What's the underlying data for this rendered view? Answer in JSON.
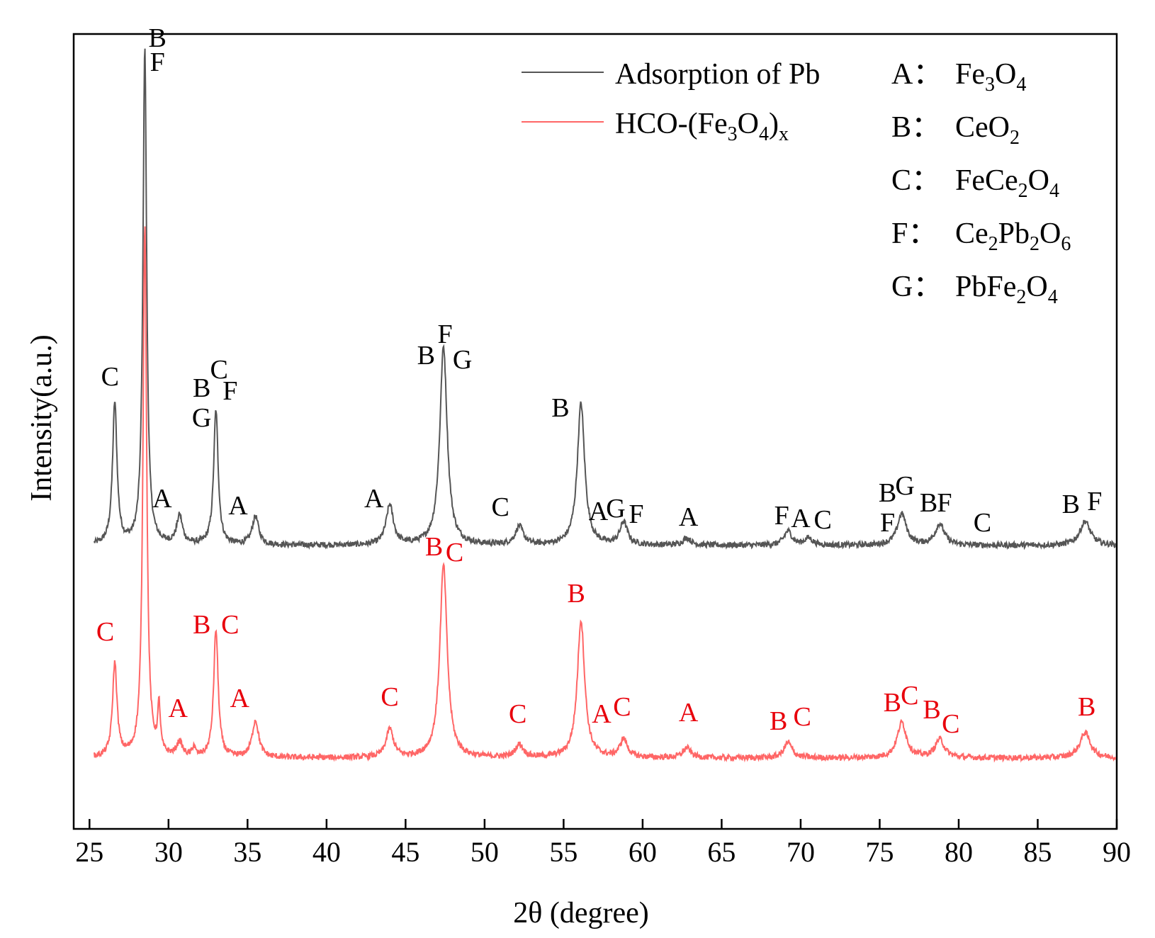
{
  "chart_data": {
    "type": "line",
    "xlabel": "2θ (degree)",
    "ylabel": "Intensity(a.u.)",
    "xlim": [
      24,
      90
    ],
    "x_ticks": [
      "25",
      "30",
      "35",
      "40",
      "45",
      "50",
      "55",
      "60",
      "65",
      "70",
      "75",
      "80",
      "85",
      "90"
    ],
    "y_ticks_visible": false,
    "grid": false,
    "legend_position": "top-right",
    "series": [
      {
        "name": "Adsorption of Pb",
        "color": "#555555",
        "baseline": 0.0,
        "noise": 0.04,
        "peaks": [
          {
            "x": 26.6,
            "h": 1.0,
            "w": 0.17
          },
          {
            "x": 28.5,
            "h": 3.5,
            "w": 0.14
          },
          {
            "x": 30.7,
            "h": 0.2,
            "w": 0.22
          },
          {
            "x": 33.0,
            "h": 0.95,
            "w": 0.17
          },
          {
            "x": 35.5,
            "h": 0.2,
            "w": 0.25
          },
          {
            "x": 44.0,
            "h": 0.28,
            "w": 0.28
          },
          {
            "x": 47.4,
            "h": 1.4,
            "w": 0.28
          },
          {
            "x": 52.2,
            "h": 0.13,
            "w": 0.3
          },
          {
            "x": 56.1,
            "h": 1.0,
            "w": 0.28
          },
          {
            "x": 58.8,
            "h": 0.16,
            "w": 0.28
          },
          {
            "x": 62.8,
            "h": 0.05,
            "w": 0.3
          },
          {
            "x": 69.2,
            "h": 0.1,
            "w": 0.3
          },
          {
            "x": 70.5,
            "h": 0.05,
            "w": 0.3
          },
          {
            "x": 76.4,
            "h": 0.22,
            "w": 0.35
          },
          {
            "x": 78.8,
            "h": 0.15,
            "w": 0.35
          },
          {
            "x": 88.0,
            "h": 0.17,
            "w": 0.4
          }
        ],
        "labels": [
          {
            "text": "C",
            "x": 26.3,
            "y": 1.13
          },
          {
            "text": "B",
            "x": 29.3,
            "y": 3.52
          },
          {
            "text": "F",
            "x": 29.3,
            "y": 3.35
          },
          {
            "text": "A",
            "x": 29.6,
            "y": 0.27
          },
          {
            "text": "C",
            "x": 33.2,
            "y": 1.18
          },
          {
            "text": "B",
            "x": 32.1,
            "y": 1.05
          },
          {
            "text": "F",
            "x": 33.9,
            "y": 1.03
          },
          {
            "text": "G",
            "x": 32.1,
            "y": 0.84
          },
          {
            "text": "A",
            "x": 34.4,
            "y": 0.22
          },
          {
            "text": "A",
            "x": 43.0,
            "y": 0.27
          },
          {
            "text": "F",
            "x": 47.5,
            "y": 1.43
          },
          {
            "text": "B",
            "x": 46.3,
            "y": 1.28
          },
          {
            "text": "G",
            "x": 48.6,
            "y": 1.25
          },
          {
            "text": "C",
            "x": 51.0,
            "y": 0.21
          },
          {
            "text": "B",
            "x": 54.8,
            "y": 0.91
          },
          {
            "text": "A",
            "x": 57.2,
            "y": 0.18
          },
          {
            "text": "G",
            "x": 58.3,
            "y": 0.2
          },
          {
            "text": "F",
            "x": 59.6,
            "y": 0.16
          },
          {
            "text": "A",
            "x": 62.9,
            "y": 0.14
          },
          {
            "text": "F",
            "x": 68.8,
            "y": 0.15
          },
          {
            "text": "A",
            "x": 70.0,
            "y": 0.13
          },
          {
            "text": "C",
            "x": 71.4,
            "y": 0.12
          },
          {
            "text": "B",
            "x": 75.5,
            "y": 0.31
          },
          {
            "text": "G",
            "x": 76.6,
            "y": 0.36
          },
          {
            "text": "F",
            "x": 75.5,
            "y": 0.1
          },
          {
            "text": "B",
            "x": 78.1,
            "y": 0.24
          },
          {
            "text": "F",
            "x": 79.1,
            "y": 0.24
          },
          {
            "text": "C",
            "x": 81.5,
            "y": 0.1
          },
          {
            "text": "B",
            "x": 87.1,
            "y": 0.23
          },
          {
            "text": "F",
            "x": 88.6,
            "y": 0.25
          }
        ]
      },
      {
        "name": "HCO-(Fe3O4)x",
        "color": "#ff6666",
        "baseline": -1.5,
        "noise": 0.04,
        "peaks": [
          {
            "x": 26.6,
            "h": 0.66,
            "w": 0.17
          },
          {
            "x": 28.5,
            "h": 3.75,
            "w": 0.14
          },
          {
            "x": 29.4,
            "h": 0.33,
            "w": 0.1
          },
          {
            "x": 30.7,
            "h": 0.1,
            "w": 0.22
          },
          {
            "x": 31.6,
            "h": 0.07,
            "w": 0.1
          },
          {
            "x": 33.0,
            "h": 0.9,
            "w": 0.17
          },
          {
            "x": 35.5,
            "h": 0.26,
            "w": 0.25
          },
          {
            "x": 44.0,
            "h": 0.2,
            "w": 0.28
          },
          {
            "x": 47.4,
            "h": 1.36,
            "w": 0.28
          },
          {
            "x": 52.2,
            "h": 0.09,
            "w": 0.3
          },
          {
            "x": 56.1,
            "h": 0.97,
            "w": 0.28
          },
          {
            "x": 58.8,
            "h": 0.13,
            "w": 0.28
          },
          {
            "x": 62.8,
            "h": 0.07,
            "w": 0.3
          },
          {
            "x": 69.2,
            "h": 0.11,
            "w": 0.3
          },
          {
            "x": 76.4,
            "h": 0.25,
            "w": 0.35
          },
          {
            "x": 78.8,
            "h": 0.13,
            "w": 0.35
          },
          {
            "x": 88.0,
            "h": 0.18,
            "w": 0.4
          }
        ],
        "labels": [
          {
            "text": "C",
            "x": 26.0,
            "y": -0.67
          },
          {
            "text": "B",
            "x": 32.1,
            "y": -0.62
          },
          {
            "text": "C",
            "x": 33.9,
            "y": -0.62
          },
          {
            "text": "A",
            "x": 30.6,
            "y": -1.21
          },
          {
            "text": "A",
            "x": 34.5,
            "y": -1.14
          },
          {
            "text": "C",
            "x": 44.0,
            "y": -1.13
          },
          {
            "text": "B",
            "x": 46.8,
            "y": -0.07
          },
          {
            "text": "C",
            "x": 48.1,
            "y": -0.11
          },
          {
            "text": "B",
            "x": 55.8,
            "y": -0.4
          },
          {
            "text": "C",
            "x": 52.1,
            "y": -1.25
          },
          {
            "text": "A",
            "x": 57.4,
            "y": -1.25
          },
          {
            "text": "C",
            "x": 58.7,
            "y": -1.2
          },
          {
            "text": "A",
            "x": 62.9,
            "y": -1.24
          },
          {
            "text": "B",
            "x": 68.6,
            "y": -1.3
          },
          {
            "text": "C",
            "x": 70.1,
            "y": -1.27
          },
          {
            "text": "B",
            "x": 75.8,
            "y": -1.17
          },
          {
            "text": "C",
            "x": 76.9,
            "y": -1.12
          },
          {
            "text": "B",
            "x": 78.3,
            "y": -1.22
          },
          {
            "text": "C",
            "x": 79.5,
            "y": -1.32
          },
          {
            "text": "B",
            "x": 88.1,
            "y": -1.2
          }
        ]
      }
    ],
    "legend": {
      "entries": [
        {
          "label": "Adsorption of Pb",
          "color": "#555555"
        },
        {
          "label": "HCO-(Fe",
          "sub1": "3",
          "mid": "O",
          "sub2": "4",
          "close": ")",
          "sub3": "x",
          "color": "#ff6666"
        }
      ]
    },
    "phases": [
      {
        "key": "A：",
        "parts": [
          {
            "t": "Fe"
          },
          {
            "t": "3",
            "sub": true
          },
          {
            "t": "O"
          },
          {
            "t": "4",
            "sub": true
          }
        ]
      },
      {
        "key": "B：",
        "parts": [
          {
            "t": "CeO"
          },
          {
            "t": "2",
            "sub": true
          }
        ]
      },
      {
        "key": "C：",
        "parts": [
          {
            "t": "FeCe"
          },
          {
            "t": "2",
            "sub": true
          },
          {
            "t": "O"
          },
          {
            "t": "4",
            "sub": true
          }
        ]
      },
      {
        "key": "F：",
        "parts": [
          {
            "t": "Ce"
          },
          {
            "t": "2",
            "sub": true
          },
          {
            "t": "Pb"
          },
          {
            "t": "2",
            "sub": true
          },
          {
            "t": "O"
          },
          {
            "t": "6",
            "sub": true
          }
        ]
      },
      {
        "key": "G：",
        "parts": [
          {
            "t": "PbFe"
          },
          {
            "t": "2",
            "sub": true
          },
          {
            "t": "O"
          },
          {
            "t": "4",
            "sub": true
          }
        ]
      }
    ]
  }
}
